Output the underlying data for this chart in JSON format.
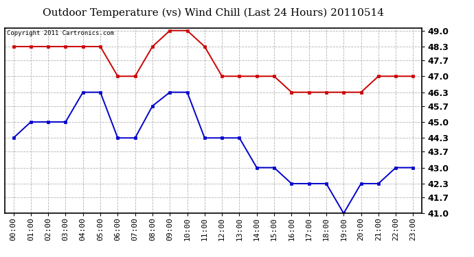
{
  "title": "Outdoor Temperature (vs) Wind Chill (Last 24 Hours) 20110514",
  "copyright": "Copyright 2011 Cartronics.com",
  "hours": [
    "00:00",
    "01:00",
    "02:00",
    "03:00",
    "04:00",
    "05:00",
    "06:00",
    "07:00",
    "08:00",
    "09:00",
    "10:00",
    "11:00",
    "12:00",
    "13:00",
    "14:00",
    "15:00",
    "16:00",
    "17:00",
    "18:00",
    "19:00",
    "20:00",
    "21:00",
    "22:00",
    "23:00"
  ],
  "red_temp": [
    48.3,
    48.3,
    48.3,
    48.3,
    48.3,
    48.3,
    47.0,
    47.0,
    48.3,
    49.0,
    49.0,
    48.3,
    47.0,
    47.0,
    47.0,
    47.0,
    46.3,
    46.3,
    46.3,
    46.3,
    46.3,
    47.0,
    47.0,
    47.0
  ],
  "blue_wind": [
    44.3,
    45.0,
    45.0,
    45.0,
    46.3,
    46.3,
    44.3,
    44.3,
    45.7,
    46.3,
    46.3,
    44.3,
    44.3,
    44.3,
    43.0,
    43.0,
    42.3,
    42.3,
    42.3,
    41.0,
    42.3,
    42.3,
    43.0,
    43.0
  ],
  "red_color": "#cc0000",
  "blue_color": "#0000cc",
  "bg_color": "#ffffff",
  "grid_color": "#aaaaaa",
  "yticks": [
    41.0,
    41.7,
    42.3,
    43.0,
    43.7,
    44.3,
    45.0,
    45.7,
    46.3,
    47.0,
    47.7,
    48.3,
    49.0
  ],
  "ymin": 41.0,
  "ymax": 49.0,
  "marker": "s",
  "marker_size": 3.0,
  "line_width": 1.4,
  "title_fontsize": 11,
  "copyright_fontsize": 6.5,
  "tick_fontsize": 8,
  "ytick_fontsize": 9
}
